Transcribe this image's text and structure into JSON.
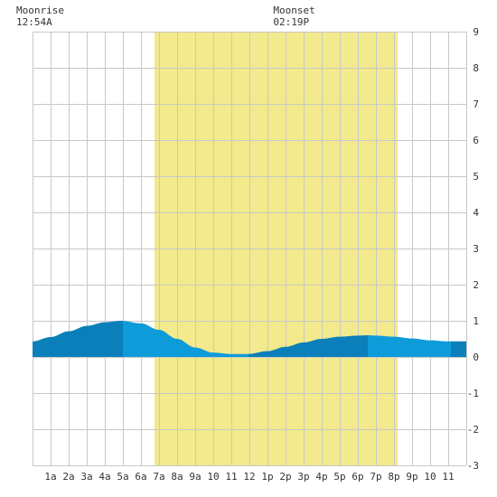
{
  "moon": {
    "rise_label": "Moonrise",
    "rise_time": "12:54A",
    "set_label": "Moonset",
    "set_time": "02:19P"
  },
  "colors": {
    "daylight": "#f2ea8c",
    "tide_light": "#0e9bd9",
    "tide_dark": "#0a7fb9",
    "grid": "#c8c8c8",
    "background": "#ffffff"
  },
  "chart_data": {
    "type": "area",
    "title": "",
    "xlabel": "",
    "ylabel": "",
    "ylim": [
      -3,
      9
    ],
    "yticks": [
      -3,
      -2,
      -1,
      0,
      1,
      2,
      3,
      4,
      5,
      6,
      7,
      8,
      9
    ],
    "xlim": [
      0,
      24
    ],
    "xtick_labels": [
      "1a",
      "2a",
      "3a",
      "4a",
      "5a",
      "6a",
      "7a",
      "8a",
      "9a",
      "10",
      "11",
      "12",
      "1p",
      "2p",
      "3p",
      "4p",
      "5p",
      "6p",
      "7p",
      "8p",
      "9p",
      "10",
      "11"
    ],
    "daylight_hours": [
      6.75,
      20.2
    ],
    "moonrise_hour": 0.9,
    "moonset_hour": 14.32,
    "grid": true,
    "series": [
      {
        "x": [
          0,
          1,
          2,
          3,
          4,
          4.9,
          6,
          7,
          8,
          9,
          10,
          11,
          11.9,
          13,
          14,
          15,
          16,
          17,
          18,
          18.6,
          19,
          20,
          21,
          22,
          23,
          24
        ],
        "values": [
          0.43,
          0.55,
          0.71,
          0.86,
          0.96,
          1.0,
          0.93,
          0.75,
          0.5,
          0.26,
          0.12,
          0.08,
          0.08,
          0.16,
          0.28,
          0.4,
          0.5,
          0.56,
          0.59,
          0.6,
          0.59,
          0.56,
          0.51,
          0.46,
          0.43,
          0.43
        ]
      }
    ],
    "shading_bands": [
      {
        "from": 0,
        "to": 5.0,
        "tone": "dark"
      },
      {
        "from": 5.0,
        "to": 11.95,
        "tone": "light"
      },
      {
        "from": 11.95,
        "to": 18.55,
        "tone": "dark"
      },
      {
        "from": 18.55,
        "to": 23.15,
        "tone": "light"
      },
      {
        "from": 23.15,
        "to": 24,
        "tone": "dark"
      }
    ]
  }
}
